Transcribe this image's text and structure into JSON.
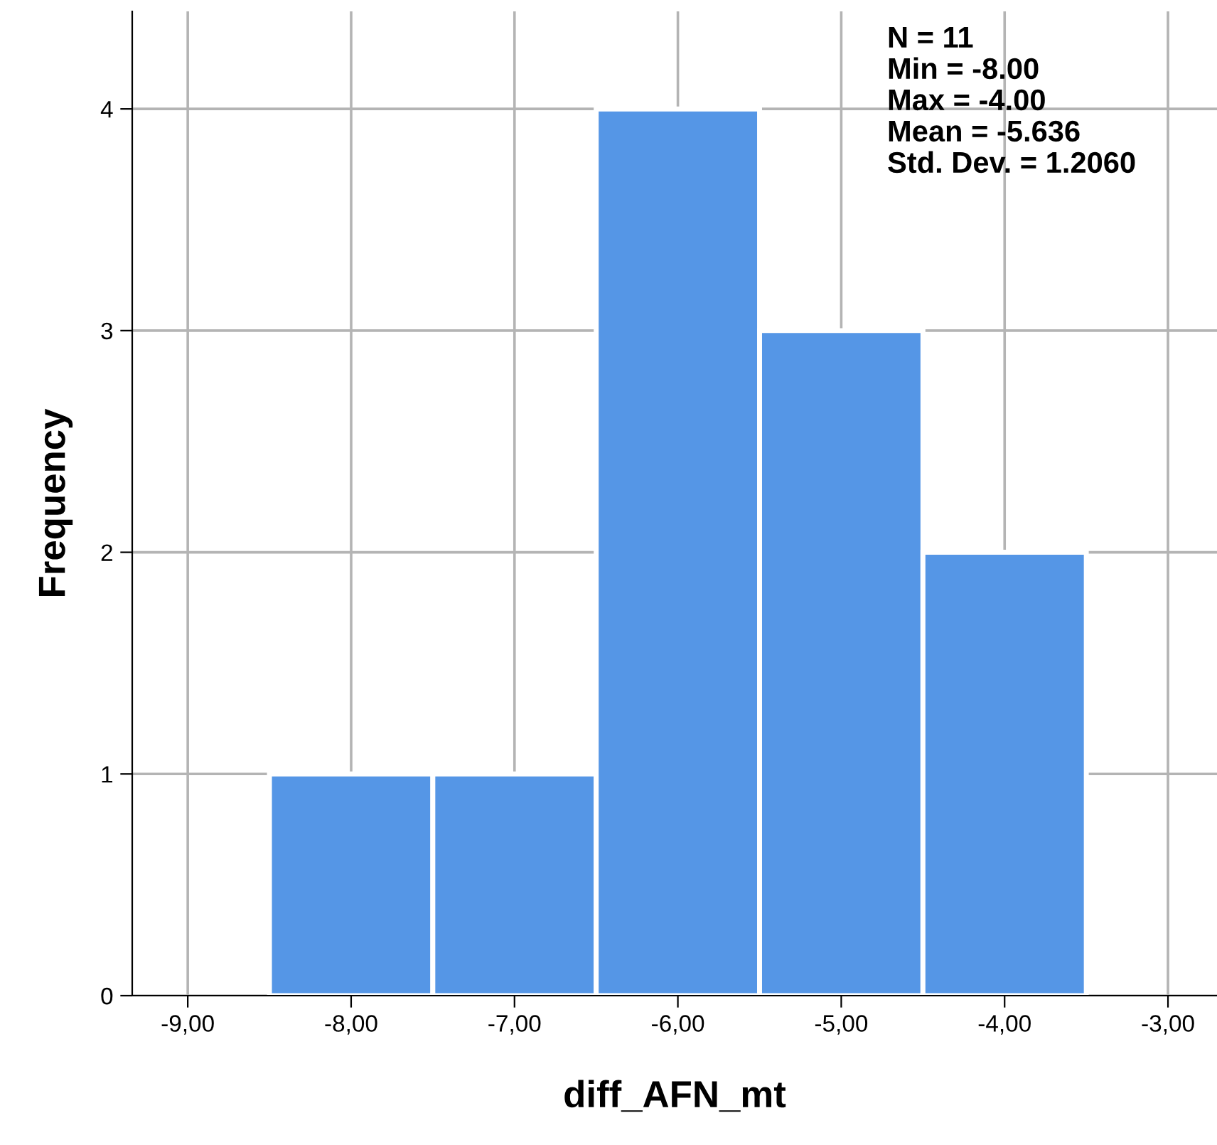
{
  "chart_data": {
    "type": "histogram",
    "xlabel": "diff_AFN_mt",
    "ylabel": "Frequency",
    "bins": [
      -8.5,
      -7.5,
      -6.5,
      -5.5,
      -4.5,
      -3.5
    ],
    "values": [
      1,
      1,
      4,
      3,
      2
    ],
    "color": "#5596e6",
    "xlim": [
      -9.34,
      -2.7
    ],
    "ylim": [
      0,
      4.44
    ],
    "xticks": [
      {
        "value": -9,
        "label": "-9,00"
      },
      {
        "value": -8,
        "label": "-8,00"
      },
      {
        "value": -7,
        "label": "-7,00"
      },
      {
        "value": -6,
        "label": "-6,00"
      },
      {
        "value": -5,
        "label": "-5,00"
      },
      {
        "value": -4,
        "label": "-4,00"
      },
      {
        "value": -3,
        "label": "-3,00"
      }
    ],
    "yticks": [
      0,
      1,
      2,
      3,
      4
    ],
    "grid": true,
    "annotations": [
      "N = 11",
      "Min = -8.00",
      "Max = -4.00",
      "Mean = -5.636",
      "Std. Dev. = 1.2060"
    ]
  }
}
